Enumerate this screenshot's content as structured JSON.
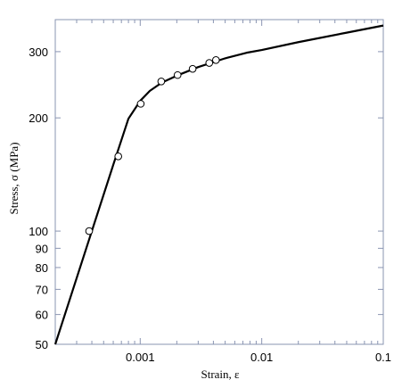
{
  "chart_data": {
    "type": "scatter",
    "x_scale": "log",
    "y_scale": "log",
    "xlabel": "Strain, ε",
    "ylabel": "Stress, σ (MPa)",
    "xlim": [
      0.0002,
      0.1
    ],
    "ylim": [
      50,
      365
    ],
    "x_ticks": [
      {
        "value": 0.001,
        "label": "0.001"
      },
      {
        "value": 0.01,
        "label": "0.01"
      },
      {
        "value": 0.1,
        "label": "0.1"
      }
    ],
    "y_ticks": [
      {
        "value": 50,
        "label": "50"
      },
      {
        "value": 60,
        "label": "60"
      },
      {
        "value": 70,
        "label": "70"
      },
      {
        "value": 80,
        "label": "80"
      },
      {
        "value": 90,
        "label": "90"
      },
      {
        "value": 100,
        "label": "100"
      },
      {
        "value": 200,
        "label": "200"
      },
      {
        "value": 300,
        "label": "300"
      }
    ],
    "grid": false,
    "legend": "none",
    "series": [
      {
        "type": "scatter",
        "marker": "open-circle",
        "x": [
          0.00038,
          0.00066,
          0.00101,
          0.00149,
          0.00203,
          0.0027,
          0.0037,
          0.0042
        ],
        "y": [
          100,
          158,
          218,
          250,
          260,
          270,
          280,
          285
        ]
      },
      {
        "type": "line",
        "x": [
          0.0002,
          0.0004,
          0.0006,
          0.0008,
          0.001,
          0.0012,
          0.0015,
          0.002,
          0.003,
          0.005,
          0.0075,
          0.01,
          0.02,
          0.05,
          0.1
        ],
        "y": [
          50,
          100,
          150,
          199,
          222,
          236,
          248,
          259,
          273,
          288,
          298,
          303,
          318,
          337,
          352
        ]
      }
    ]
  }
}
